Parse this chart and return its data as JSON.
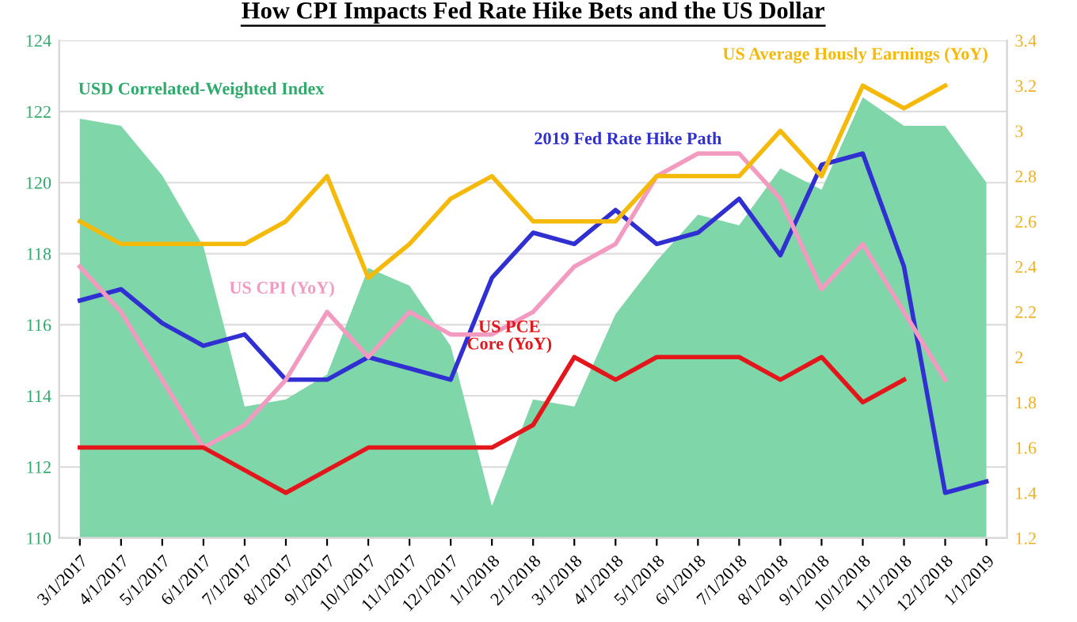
{
  "chart_data": {
    "type": "line",
    "title": "How CPI Impacts Fed Rate Hike Bets and the US Dollar",
    "categories": [
      "3/1/2017",
      "4/1/2017",
      "5/1/2017",
      "6/1/2017",
      "7/1/2017",
      "8/1/2017",
      "9/1/2017",
      "10/1/2017",
      "11/1/2017",
      "12/1/2017",
      "1/1/2018",
      "2/1/2018",
      "3/1/2018",
      "4/1/2018",
      "5/1/2018",
      "6/1/2018",
      "7/1/2018",
      "8/1/2018",
      "9/1/2018",
      "10/1/2018",
      "11/1/2018",
      "12/1/2018",
      "1/1/2019"
    ],
    "series": [
      {
        "name": "USD Correlated-Weighted Index",
        "type": "area",
        "color": "#7fd6a8",
        "values": [
          121.8,
          121.6,
          120.2,
          118.2,
          113.7,
          113.9,
          114.6,
          117.6,
          117.1,
          115.4,
          110.9,
          113.9,
          113.7,
          116.3,
          117.8,
          119.1,
          118.8,
          120.4,
          119.8,
          122.4,
          121.6,
          121.6,
          120.0
        ]
      },
      {
        "name": "2019 Fed Rate Hike Path",
        "axis": "y2",
        "color": "#2f2fd2",
        "values": [
          2.25,
          2.3,
          2.15,
          2.05,
          2.1,
          1.9,
          1.9,
          2.0,
          1.95,
          1.9,
          2.35,
          2.55,
          2.5,
          2.65,
          2.5,
          2.55,
          2.7,
          2.45,
          2.85,
          2.9,
          2.4,
          1.4,
          1.45
        ]
      },
      {
        "name": "US CPI (YoY)",
        "axis": "y2",
        "color": "#f29ac0",
        "values": [
          2.4,
          2.2,
          1.9,
          1.6,
          1.7,
          1.9,
          2.2,
          2.0,
          2.2,
          2.1,
          2.1,
          2.2,
          2.4,
          2.5,
          2.8,
          2.9,
          2.9,
          2.7,
          2.3,
          2.5,
          2.2,
          1.9,
          null
        ]
      },
      {
        "name": "US PCE\nCore (YoY)",
        "axis": "y2",
        "color": "#e3161b",
        "values": [
          1.6,
          1.6,
          1.6,
          1.6,
          1.5,
          1.4,
          1.5,
          1.6,
          1.6,
          1.6,
          1.6,
          1.7,
          2.0,
          1.9,
          2.0,
          2.0,
          2.0,
          1.9,
          2.0,
          1.8,
          1.9,
          null,
          null
        ]
      },
      {
        "name": "US Average Hously Earnings (YoY)",
        "axis": "y2",
        "color": "#f5b90a",
        "values": [
          2.6,
          2.5,
          2.5,
          2.5,
          2.5,
          2.6,
          2.8,
          2.35,
          2.5,
          2.7,
          2.8,
          2.6,
          2.6,
          2.6,
          2.8,
          2.8,
          2.8,
          3.0,
          2.8,
          3.2,
          3.1,
          3.2,
          null
        ]
      }
    ],
    "ylim": [
      110,
      124
    ],
    "yticks": [
      110,
      112,
      114,
      116,
      118,
      120,
      122,
      124
    ],
    "y2lim": [
      1.2,
      3.4
    ],
    "y2ticks": [
      {
        "value": 1.2,
        "label": "1.2"
      },
      {
        "value": 1.4,
        "label": "1.4"
      },
      {
        "value": 1.6,
        "label": "1.6"
      },
      {
        "value": 1.8,
        "label": "1.8"
      },
      {
        "value": 2,
        "label": "2"
      },
      {
        "value": 2.2,
        "label": "2.2"
      },
      {
        "value": 2.4,
        "label": "2.4"
      },
      {
        "value": 2.6,
        "label": "2.6"
      },
      {
        "value": 2.8,
        "label": "2.8"
      },
      {
        "value": 3,
        "label": "3"
      },
      {
        "value": 3.2,
        "label": "3.2"
      },
      {
        "value": 3.4,
        "label": "3.4"
      }
    ],
    "grid": "y",
    "marker": "none",
    "line_style": "solid"
  }
}
